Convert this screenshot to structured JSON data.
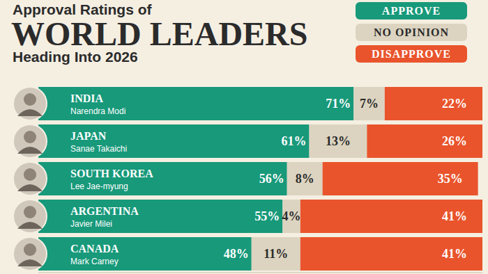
{
  "chart_data": {
    "type": "bar",
    "supertitle": "Approval Ratings of",
    "title": "WORLD LEADERS",
    "subtitle": "Heading Into 2026",
    "orientation": "horizontal",
    "stacked": true,
    "data_labels": true,
    "tick_labels": false,
    "grid": false,
    "legend": "top-right",
    "xlim": [
      0,
      100
    ],
    "categories": [
      "INDIA",
      "JAPAN",
      "SOUTH KOREA",
      "ARGENTINA",
      "CANADA"
    ],
    "leaders": [
      "Narendra Modi",
      "Sanae Takaichi",
      "Lee Jae-myung",
      "Javier Milei",
      "Mark Carney"
    ],
    "series": [
      {
        "name": "APPROVE",
        "color": "#17997a",
        "values": [
          71,
          61,
          56,
          55,
          48
        ],
        "value_labels": [
          "71%",
          "61%",
          "56%",
          "55%",
          "48%"
        ]
      },
      {
        "name": "NO OPINION",
        "color": "#dcd4c0",
        "values": [
          7,
          13,
          8,
          4,
          11
        ],
        "value_labels": [
          "7%",
          "13%",
          "8%",
          "4%",
          "11%"
        ]
      },
      {
        "name": "DISAPPROVE",
        "color": "#e9542c",
        "values": [
          22,
          26,
          35,
          41,
          41
        ],
        "value_labels": [
          "22%",
          "26%",
          "35%",
          "41%",
          "41%"
        ]
      }
    ]
  }
}
